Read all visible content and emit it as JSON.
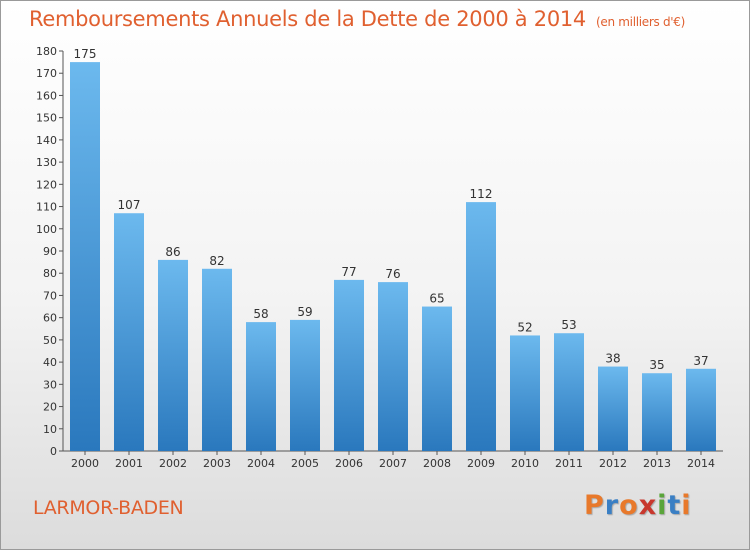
{
  "header": {
    "title": "Remboursements Annuels de la Dette de 2000 à 2014",
    "unit": "(en milliers d'€)"
  },
  "footer": {
    "commune": "LARMOR-BADEN",
    "logo_text": "Proxiti",
    "logo_colors": [
      "#e8792b",
      "#3a7fc4",
      "#e8792b",
      "#c8372d",
      "#5aa53a",
      "#3a7fc4",
      "#e8792b"
    ]
  },
  "colors": {
    "bar_top": "#6cb9ee",
    "bar_bottom": "#2a78bd",
    "title": "#e06030"
  },
  "chart_data": {
    "type": "bar",
    "categories": [
      "2000",
      "2001",
      "2002",
      "2003",
      "2004",
      "2005",
      "2006",
      "2007",
      "2008",
      "2009",
      "2010",
      "2011",
      "2012",
      "2013",
      "2014"
    ],
    "values": [
      175,
      107,
      86,
      82,
      58,
      59,
      77,
      76,
      65,
      112,
      52,
      53,
      38,
      35,
      37
    ],
    "title": "Remboursements Annuels de la Dette de 2000 à 2014",
    "subtitle": "(en milliers d'€)",
    "ylim": [
      0,
      180
    ],
    "yticks": [
      0,
      10,
      20,
      30,
      40,
      50,
      60,
      70,
      80,
      90,
      100,
      110,
      120,
      130,
      140,
      150,
      160,
      170,
      180
    ],
    "grid": false,
    "data_labels": true
  }
}
